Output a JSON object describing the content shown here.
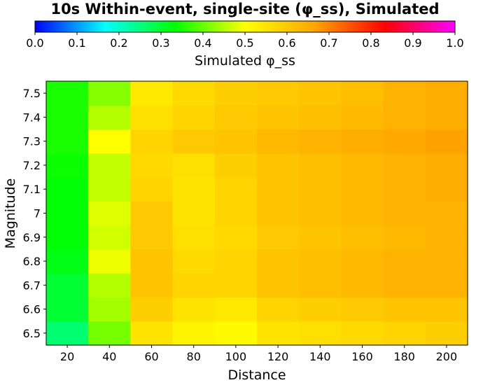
{
  "chart_data": {
    "type": "heatmap",
    "title": "10s Within-event, single-site (φ_ss), Simulated",
    "xlabel": "Distance",
    "ylabel": "Magnitude",
    "x": [
      20,
      40,
      60,
      80,
      100,
      120,
      140,
      160,
      180,
      200
    ],
    "x_ticks": [
      "20",
      "40",
      "60",
      "80",
      "100",
      "120",
      "140",
      "160",
      "180",
      "200"
    ],
    "y": [
      6.5,
      6.6,
      6.7,
      6.8,
      6.9,
      7.0,
      7.1,
      7.2,
      7.3,
      7.4,
      7.5
    ],
    "y_ticks": [
      "6.5",
      "6.6",
      "6.7",
      "6.8",
      "6.9",
      "7",
      "7.1",
      "7.2",
      "7.3",
      "7.4",
      "7.5"
    ],
    "values": [
      [
        0.26,
        0.41,
        0.55,
        0.52,
        0.51,
        0.55,
        0.56,
        0.57,
        0.58,
        0.59
      ],
      [
        0.3,
        0.44,
        0.59,
        0.55,
        0.54,
        0.58,
        0.59,
        0.6,
        0.61,
        0.61
      ],
      [
        0.3,
        0.45,
        0.61,
        0.58,
        0.58,
        0.61,
        0.62,
        0.63,
        0.64,
        0.64
      ],
      [
        0.32,
        0.49,
        0.61,
        0.57,
        0.58,
        0.61,
        0.62,
        0.63,
        0.64,
        0.64
      ],
      [
        0.33,
        0.47,
        0.6,
        0.56,
        0.57,
        0.6,
        0.61,
        0.62,
        0.63,
        0.64
      ],
      [
        0.33,
        0.48,
        0.6,
        0.55,
        0.58,
        0.61,
        0.62,
        0.63,
        0.64,
        0.64
      ],
      [
        0.33,
        0.46,
        0.58,
        0.55,
        0.58,
        0.61,
        0.62,
        0.63,
        0.64,
        0.65
      ],
      [
        0.34,
        0.46,
        0.57,
        0.56,
        0.59,
        0.61,
        0.62,
        0.63,
        0.64,
        0.65
      ],
      [
        0.35,
        0.5,
        0.58,
        0.6,
        0.61,
        0.63,
        0.64,
        0.65,
        0.66,
        0.67
      ],
      [
        0.35,
        0.45,
        0.56,
        0.58,
        0.6,
        0.61,
        0.62,
        0.63,
        0.64,
        0.65
      ],
      [
        0.35,
        0.42,
        0.54,
        0.57,
        0.59,
        0.6,
        0.61,
        0.62,
        0.64,
        0.65
      ]
    ],
    "colorbar": {
      "label": "Simulated φ_ss",
      "range": [
        0.0,
        1.0
      ],
      "ticks": [
        "0.0",
        "0.1",
        "0.2",
        "0.3",
        "0.4",
        "0.5",
        "0.6",
        "0.7",
        "0.8",
        "0.9",
        "1.0"
      ],
      "colormap": [
        "#0000ff",
        "#00ffff",
        "#00ff00",
        "#ffff00",
        "#ffa500",
        "#ff0000",
        "#ff00ff"
      ],
      "placement": "top"
    },
    "grid": false
  }
}
